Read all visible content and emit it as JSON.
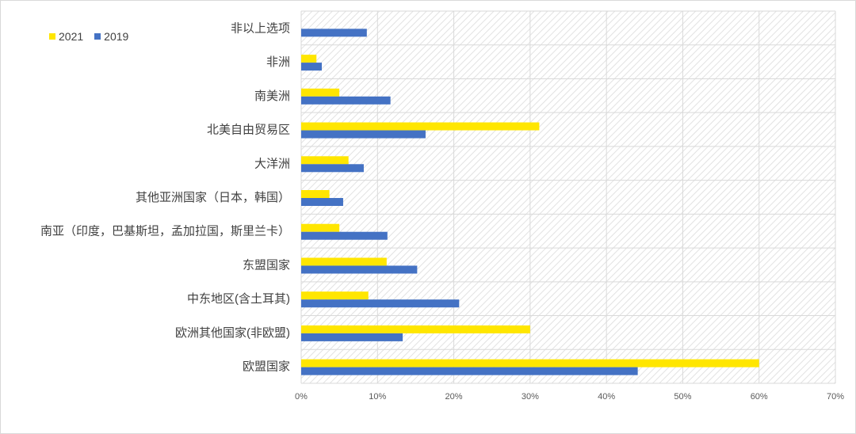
{
  "chart_data": {
    "type": "bar",
    "orientation": "horizontal",
    "categories": [
      "非以上选项",
      "非洲",
      "南美洲",
      "北美自由贸易区",
      "大洋洲",
      "其他亚洲国家（日本，韩国）",
      "南亚（印度，巴基斯坦，孟加拉国，斯里兰卡）",
      "东盟国家",
      "中东地区(含土耳其)",
      "欧洲其他国家(非欧盟)",
      "欧盟国家"
    ],
    "series": [
      {
        "name": "2021",
        "color": "#ffe600",
        "values": [
          0,
          2,
          5,
          31.2,
          6.2,
          3.7,
          5,
          11.2,
          8.8,
          30,
          60
        ]
      },
      {
        "name": "2019",
        "color": "#4472c4",
        "values": [
          8.6,
          2.7,
          11.7,
          16.3,
          8.2,
          5.5,
          11.3,
          15.2,
          20.7,
          13.3,
          44.1
        ]
      }
    ],
    "x_ticks": [
      "0%",
      "10%",
      "20%",
      "30%",
      "40%",
      "50%",
      "60%",
      "70%"
    ],
    "xlim": [
      0,
      70
    ],
    "grid": true,
    "legend_position": "top-left"
  }
}
